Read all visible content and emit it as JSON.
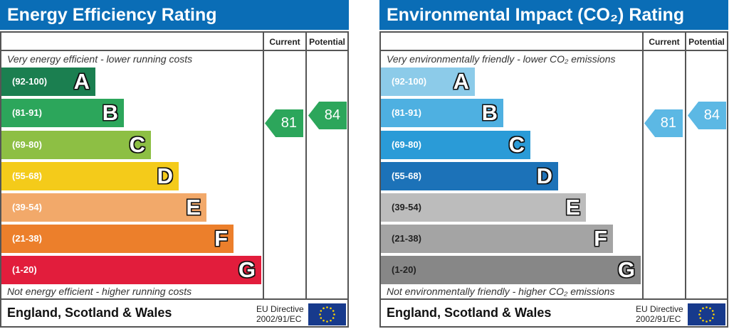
{
  "chart_data": [
    {
      "type": "bar",
      "title": "Energy Efficiency Rating",
      "columns": [
        "Current",
        "Potential"
      ],
      "top_note": "Very energy efficient - lower running costs",
      "bottom_note": "Not energy efficient - higher running costs",
      "bands": [
        {
          "range": "(92-100)",
          "letter": "A",
          "color": "#1b7f50"
        },
        {
          "range": "(81-91)",
          "letter": "B",
          "color": "#2ca65b"
        },
        {
          "range": "(69-80)",
          "letter": "C",
          "color": "#8dbf44"
        },
        {
          "range": "(55-68)",
          "letter": "D",
          "color": "#f4cb1a"
        },
        {
          "range": "(39-54)",
          "letter": "E",
          "color": "#f2a96a"
        },
        {
          "range": "(21-38)",
          "letter": "F",
          "color": "#ec7f2b"
        },
        {
          "range": "(1-20)",
          "letter": "G",
          "color": "#e21d3c"
        }
      ],
      "current": {
        "value": "81",
        "band": "B",
        "color": "#2ca65b"
      },
      "potential": {
        "value": "84",
        "band": "B",
        "color": "#2ca65b"
      },
      "footer": "England, Scotland & Wales",
      "eu_line1": "EU Directive",
      "eu_line2": "2002/91/EC"
    },
    {
      "type": "bar",
      "title": "Environmental Impact (CO₂) Rating",
      "columns": [
        "Current",
        "Potential"
      ],
      "top_note": "Very environmentally friendly - lower CO₂ emissions",
      "bottom_note": "Not environmentally friendly - higher CO₂ emissions",
      "bands": [
        {
          "range": "(92-100)",
          "letter": "A",
          "color": "#8ccbe9"
        },
        {
          "range": "(81-91)",
          "letter": "B",
          "color": "#4eb0e1"
        },
        {
          "range": "(69-80)",
          "letter": "C",
          "color": "#2a9bd7"
        },
        {
          "range": "(55-68)",
          "letter": "D",
          "color": "#1c72b8"
        },
        {
          "range": "(39-54)",
          "letter": "E",
          "color": "#bcbcbc"
        },
        {
          "range": "(21-38)",
          "letter": "F",
          "color": "#a4a4a4"
        },
        {
          "range": "(1-20)",
          "letter": "G",
          "color": "#878787"
        }
      ],
      "current": {
        "value": "81",
        "band": "B",
        "color": "#5cb8e4"
      },
      "potential": {
        "value": "84",
        "band": "B",
        "color": "#5cb8e4"
      },
      "footer": "England, Scotland & Wales",
      "eu_line1": "EU Directive",
      "eu_line2": "2002/91/EC"
    }
  ]
}
